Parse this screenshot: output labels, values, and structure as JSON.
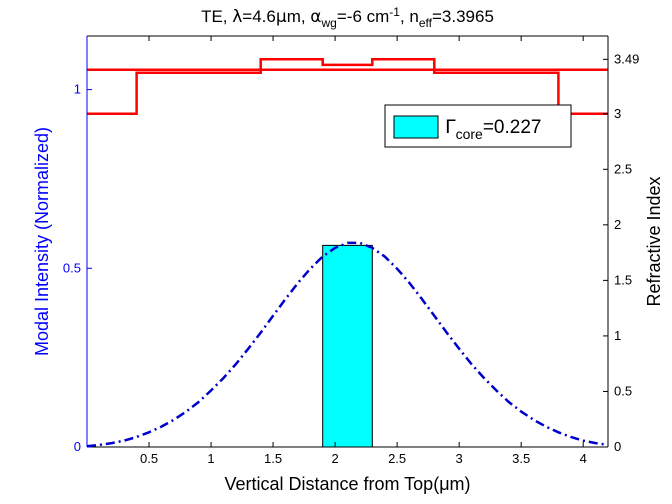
{
  "chart_data": {
    "type": "line",
    "title": {
      "parts": [
        {
          "text": "TE, "
        },
        {
          "text": "λ",
          "style": "symbol"
        },
        {
          "text": "=4.6"
        },
        {
          "text": "μ",
          "style": "symbol"
        },
        {
          "text": "m, "
        },
        {
          "text": "α",
          "style": "symbol"
        },
        {
          "text": "wg",
          "style": "sub"
        },
        {
          "text": "=-6 cm"
        },
        {
          "text": "-1",
          "style": "sup"
        },
        {
          "text": ", n"
        },
        {
          "text": "eff",
          "style": "sub"
        },
        {
          "text": "=3.3965"
        }
      ]
    },
    "xlabel": "Vertical Distance from Top(μm)",
    "ylabel_left": "Modal Intensity (Normalized)",
    "ylabel_right": "Refractive Index",
    "xlim": [
      0,
      4.2
    ],
    "ylim_left": [
      0,
      1.15
    ],
    "ylim_right": [
      0,
      3.7
    ],
    "xticks": [
      "0.5",
      "1",
      "1.5",
      "2",
      "2.5",
      "3",
      "3.5",
      "4"
    ],
    "xtick_values": [
      0.5,
      1,
      1.5,
      2,
      2.5,
      3,
      3.5,
      4
    ],
    "yticks_left": [
      "0",
      "0.5",
      "1"
    ],
    "ytick_values_left": [
      0,
      0.5,
      1
    ],
    "yticks_right": [
      "0",
      "0.5",
      "1",
      "1.5",
      "2",
      "2.5",
      "3",
      "3.49"
    ],
    "ytick_values_right": [
      0,
      0.5,
      1,
      1.5,
      2,
      2.5,
      3,
      3.49
    ],
    "colors": {
      "intensity": "#0000cc",
      "index": "#ff0000",
      "core_fill": "#00ffff",
      "axis_left": "#0000ff",
      "axis": "#000000"
    },
    "series": [
      {
        "axis": "left",
        "style": "dash-dot",
        "x": [
          0.0,
          0.1,
          0.2,
          0.3,
          0.4,
          0.5,
          0.6,
          0.7,
          0.8,
          0.9,
          1.0,
          1.1,
          1.2,
          1.3,
          1.4,
          1.5,
          1.6,
          1.7,
          1.8,
          1.9,
          2.0,
          2.1,
          2.2,
          2.3,
          2.4,
          2.5,
          2.6,
          2.7,
          2.8,
          2.9,
          3.0,
          3.1,
          3.2,
          3.3,
          3.4,
          3.5,
          3.6,
          3.7,
          3.8,
          3.9,
          4.0,
          4.1,
          4.2
        ],
        "values": [
          0.002,
          0.006,
          0.011,
          0.018,
          0.028,
          0.041,
          0.057,
          0.076,
          0.099,
          0.126,
          0.158,
          0.193,
          0.232,
          0.275,
          0.32,
          0.367,
          0.414,
          0.459,
          0.499,
          0.533,
          0.557,
          0.571,
          0.571,
          0.557,
          0.533,
          0.499,
          0.459,
          0.414,
          0.367,
          0.32,
          0.275,
          0.232,
          0.193,
          0.158,
          0.126,
          0.099,
          0.076,
          0.057,
          0.041,
          0.028,
          0.018,
          0.011,
          0.006
        ]
      },
      {
        "axis": "right",
        "style": "step",
        "x": [
          0,
          0.4,
          0.4,
          1.4,
          1.4,
          1.9,
          1.9,
          2.3,
          2.3,
          2.8,
          2.8,
          3.8,
          3.8,
          4.2
        ],
        "values": [
          3.0,
          3.0,
          3.37,
          3.37,
          3.49,
          3.49,
          3.44,
          3.44,
          3.49,
          3.49,
          3.37,
          3.37,
          3.0,
          3.0
        ]
      }
    ],
    "reference_lines": [
      {
        "axis": "right",
        "y": 3.3965
      }
    ],
    "core_region": {
      "x": [
        1.9,
        2.3
      ],
      "top": [
        0.564,
        0.564
      ]
    },
    "legend": {
      "position": "top-right",
      "entries": [
        {
          "parts": [
            {
              "text": "Γ",
              "style": "symbol"
            },
            {
              "text": "core",
              "style": "sub"
            },
            {
              "text": "=0.227"
            }
          ]
        }
      ]
    }
  }
}
